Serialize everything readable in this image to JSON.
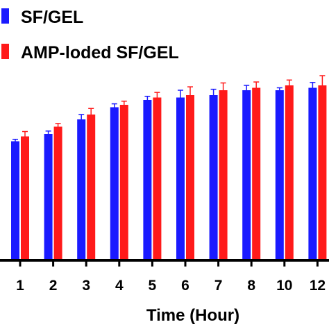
{
  "chart_data": {
    "type": "bar",
    "title": "",
    "xlabel": "Time (Hour)",
    "ylabel": "",
    "categories": [
      "1",
      "2",
      "3",
      "4",
      "5",
      "6",
      "7",
      "8",
      "10",
      "12"
    ],
    "ylim": [
      0,
      100
    ],
    "series": [
      {
        "name": "SF/GEL",
        "color": "#1a1aff",
        "values": [
          49,
          52,
          58,
          63,
          66,
          67,
          68,
          70,
          70,
          71
        ],
        "errors": [
          0.8,
          1.2,
          2.0,
          1.4,
          1.5,
          3.0,
          2.4,
          2.0,
          1.0,
          2.2
        ]
      },
      {
        "name": "AMP-loded SF/GEL",
        "color": "#ff1a1a",
        "values": [
          51,
          55,
          60,
          64,
          67,
          68,
          70,
          71,
          72,
          72
        ],
        "errors": [
          2.0,
          1.3,
          2.5,
          1.5,
          2.1,
          3.4,
          3.0,
          2.4,
          2.2,
          4.0
        ]
      }
    ],
    "legend_position": "top-left",
    "grid": false
  }
}
